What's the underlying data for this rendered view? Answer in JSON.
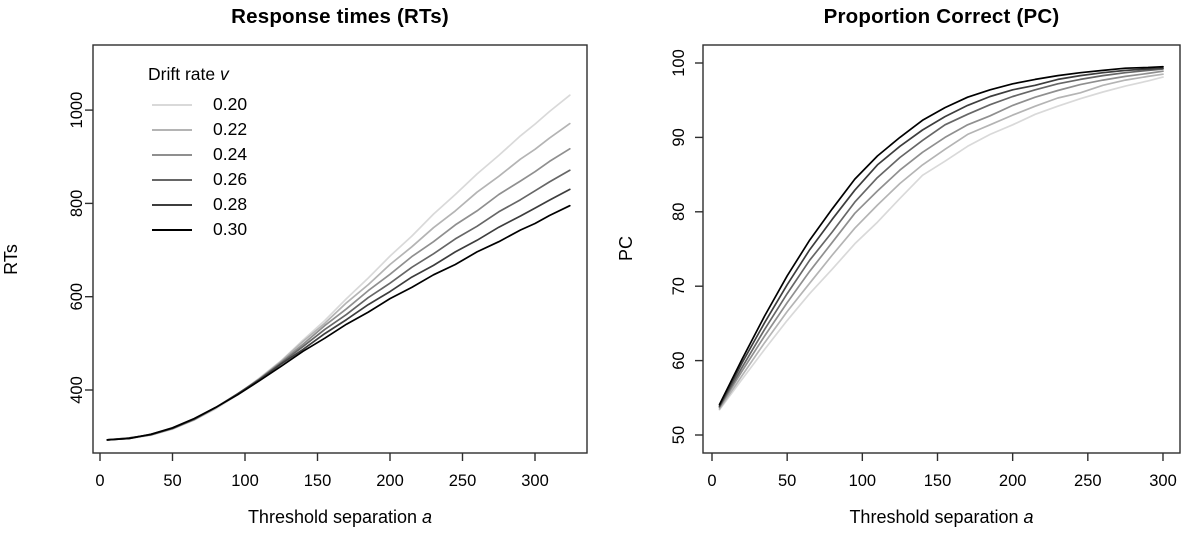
{
  "page": {
    "background": "#ffffff"
  },
  "chart_data": [
    {
      "id": "rt",
      "type": "line",
      "title": "Response times (RTs)",
      "ylabel": "RTs",
      "xlabel_text": "Threshold separation ",
      "xlabel_var": "a",
      "x_ticks": [
        0,
        50,
        100,
        150,
        200,
        250,
        300
      ],
      "y_ticks": [
        400,
        600,
        800,
        1000
      ],
      "xlim": [
        -5,
        336
      ],
      "ylim": [
        265,
        1140
      ],
      "grid": false,
      "legend": {
        "title_text": "Drift rate ",
        "title_var": "v",
        "position": "top-left"
      },
      "x": [
        5,
        20,
        35,
        50,
        65,
        80,
        95,
        110,
        125,
        140,
        155,
        170,
        185,
        200,
        215,
        230,
        245,
        260,
        275,
        290,
        300,
        310,
        324
      ],
      "series": [
        {
          "name": "0.20",
          "color": "#d9d9d9",
          "values": [
            293,
            296,
            303,
            316,
            336,
            360,
            390,
            426,
            463,
            507,
            549,
            596,
            640,
            687,
            730,
            777,
            819,
            863,
            903,
            945,
            970,
            997,
            1032
          ]
        },
        {
          "name": "0.22",
          "color": "#b4b4b4",
          "values": [
            293,
            296,
            304,
            318,
            336,
            362,
            391,
            424,
            462,
            504,
            543,
            587,
            626,
            669,
            707,
            748,
            784,
            824,
            858,
            895,
            916,
            940,
            971
          ]
        },
        {
          "name": "0.24",
          "color": "#8f8f8f",
          "values": [
            293,
            297,
            304,
            317,
            337,
            362,
            392,
            424,
            460,
            498,
            538,
            574,
            613,
            648,
            686,
            718,
            754,
            784,
            819,
            848,
            868,
            890,
            917
          ]
        },
        {
          "name": "0.26",
          "color": "#666666",
          "values": [
            293,
            296,
            305,
            318,
            337,
            363,
            391,
            423,
            458,
            493,
            530,
            562,
            598,
            629,
            663,
            692,
            724,
            751,
            782,
            808,
            827,
            846,
            871
          ]
        },
        {
          "name": "0.28",
          "color": "#3d3d3d",
          "values": [
            293,
            297,
            304,
            318,
            338,
            363,
            392,
            422,
            456,
            487,
            521,
            551,
            583,
            611,
            642,
            667,
            696,
            721,
            749,
            773,
            790,
            807,
            830
          ]
        },
        {
          "name": "0.30",
          "color": "#000000",
          "values": [
            293,
            296,
            305,
            319,
            339,
            363,
            390,
            420,
            451,
            483,
            511,
            541,
            567,
            596,
            620,
            647,
            669,
            696,
            718,
            743,
            757,
            774,
            795
          ]
        }
      ]
    },
    {
      "id": "pc",
      "type": "line",
      "title": "Proportion Correct (PC)",
      "ylabel": "PC",
      "xlabel_text": "Threshold separation ",
      "xlabel_var": "a",
      "x_ticks": [
        0,
        50,
        100,
        150,
        200,
        250,
        300
      ],
      "y_ticks": [
        50,
        60,
        70,
        80,
        90,
        100
      ],
      "xlim": [
        -6,
        317
      ],
      "ylim": [
        47.5,
        102.5
      ],
      "grid": false,
      "x": [
        5,
        20,
        35,
        50,
        65,
        80,
        95,
        110,
        125,
        140,
        155,
        170,
        185,
        200,
        215,
        230,
        245,
        260,
        275,
        290,
        300
      ],
      "series": [
        {
          "name": "0.20",
          "color": "#d9d9d9",
          "values": [
            53.4,
            57.5,
            61.5,
            65.4,
            69.0,
            72.3,
            75.7,
            78.6,
            81.8,
            84.9,
            86.8,
            88.8,
            90.4,
            91.7,
            93.1,
            94.2,
            95.2,
            96.1,
            96.9,
            97.6,
            98.1
          ]
        },
        {
          "name": "0.22",
          "color": "#b4b4b4",
          "values": [
            53.5,
            58.0,
            62.4,
            66.6,
            70.4,
            74.2,
            77.8,
            80.9,
            83.8,
            86.3,
            88.4,
            90.4,
            91.7,
            93.0,
            94.2,
            95.3,
            96.0,
            97.0,
            97.7,
            98.2,
            98.5
          ]
        },
        {
          "name": "0.24",
          "color": "#8f8f8f",
          "values": [
            53.7,
            58.6,
            63.3,
            67.8,
            72.0,
            75.9,
            79.8,
            82.8,
            85.6,
            88.0,
            90.0,
            91.7,
            92.9,
            94.3,
            95.4,
            96.3,
            97.1,
            97.7,
            98.2,
            98.6,
            98.9
          ]
        },
        {
          "name": "0.26",
          "color": "#666666",
          "values": [
            53.8,
            59.1,
            64.2,
            69.0,
            73.5,
            77.3,
            81.3,
            84.6,
            87.3,
            89.6,
            91.7,
            93.1,
            94.4,
            95.5,
            96.4,
            97.2,
            97.8,
            98.3,
            98.7,
            99.0,
            99.2
          ]
        },
        {
          "name": "0.28",
          "color": "#3d3d3d",
          "values": [
            53.9,
            59.7,
            65.1,
            70.2,
            74.9,
            79.0,
            82.9,
            86.3,
            88.8,
            91.0,
            92.8,
            94.3,
            95.5,
            96.4,
            97.0,
            97.8,
            98.3,
            98.7,
            99.0,
            99.2,
            99.3
          ]
        },
        {
          "name": "0.30",
          "color": "#000000",
          "values": [
            54.1,
            60.2,
            66.0,
            71.4,
            76.2,
            80.4,
            84.4,
            87.5,
            90.0,
            92.3,
            94.0,
            95.4,
            96.4,
            97.2,
            97.8,
            98.3,
            98.7,
            99.0,
            99.3,
            99.4,
            99.5
          ]
        }
      ]
    }
  ]
}
